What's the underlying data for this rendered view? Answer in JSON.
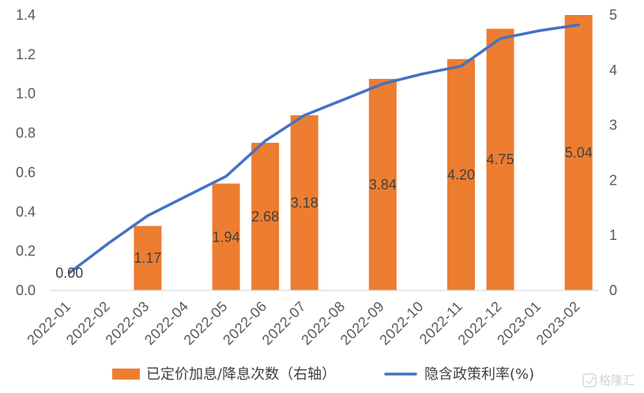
{
  "chart_data": {
    "type": "bar",
    "categories": [
      "2022-01",
      "2022-02",
      "2022-03",
      "2022-04",
      "2022-05",
      "2022-06",
      "2022-07",
      "2022-08",
      "2022-09",
      "2022-10",
      "2022-11",
      "2022-12",
      "2023-01",
      "2023-02"
    ],
    "series": [
      {
        "name": "已定价加息/降息次数（右轴）",
        "type": "bar",
        "axis": "right",
        "color": "#ED7D31",
        "show_data_labels": true,
        "values": [
          0.0,
          null,
          1.17,
          null,
          1.94,
          2.68,
          3.18,
          null,
          3.84,
          null,
          4.2,
          4.75,
          null,
          5.04
        ]
      },
      {
        "name": "隐含政策利率(%)",
        "type": "line",
        "axis": "left",
        "color": "#4472C4",
        "values": [
          0.09,
          0.24,
          0.38,
          0.48,
          0.58,
          0.76,
          0.89,
          0.97,
          1.05,
          1.1,
          1.14,
          1.28,
          1.32,
          1.35
        ]
      }
    ],
    "y_left": {
      "range": [
        0,
        1.4
      ],
      "ticks": [
        "0.0",
        "0.2",
        "0.4",
        "0.6",
        "0.8",
        "1.0",
        "1.2",
        "1.4"
      ]
    },
    "y_right": {
      "range": [
        0,
        5
      ],
      "ticks": [
        "0",
        "1",
        "2",
        "3",
        "4",
        "5"
      ]
    },
    "grid": false,
    "legend": "bottom"
  },
  "watermark": {
    "text": "格隆汇"
  }
}
